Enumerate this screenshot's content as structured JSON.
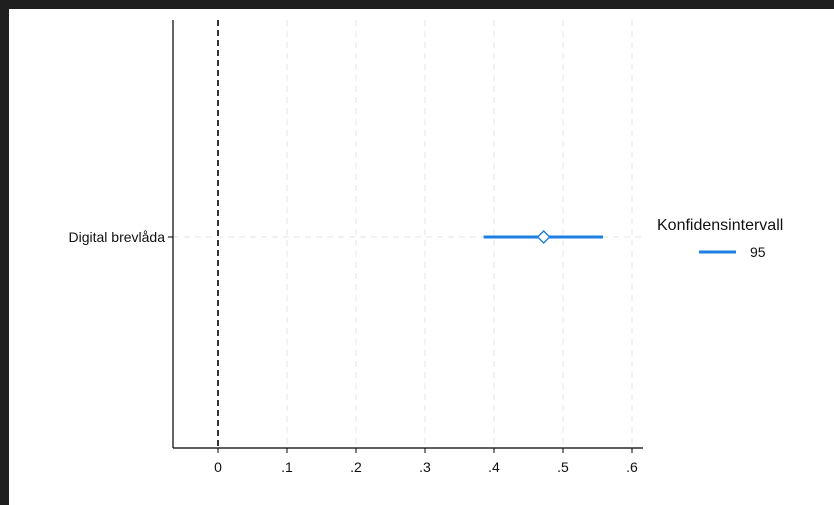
{
  "chart_data": {
    "type": "coefficient-plot",
    "categories": [
      "Digital brevlåda"
    ],
    "series": [
      {
        "name": "95",
        "estimate": [
          0.472
        ],
        "ci_low": [
          0.385
        ],
        "ci_high": [
          0.558
        ],
        "color": "#1f7fe0"
      }
    ],
    "x_ticks": [
      {
        "value": 0,
        "label": "0"
      },
      {
        "value": 0.1,
        "label": ".1"
      },
      {
        "value": 0.2,
        "label": ".2"
      },
      {
        "value": 0.3,
        "label": ".3"
      },
      {
        "value": 0.4,
        "label": ".4"
      },
      {
        "value": 0.5,
        "label": ".5"
      },
      {
        "value": 0.6,
        "label": ".6"
      }
    ],
    "xlim": [
      -0.065,
      0.62
    ],
    "reference_line": 0,
    "grid": true,
    "legend": {
      "title": "Konfidensintervall",
      "position": "right"
    },
    "title": "",
    "xlabel": "",
    "ylabel": ""
  },
  "colors": {
    "series": "#1f7fe0",
    "grid": "#e6e6e6",
    "axis": "#000000",
    "reference": "#000000"
  }
}
